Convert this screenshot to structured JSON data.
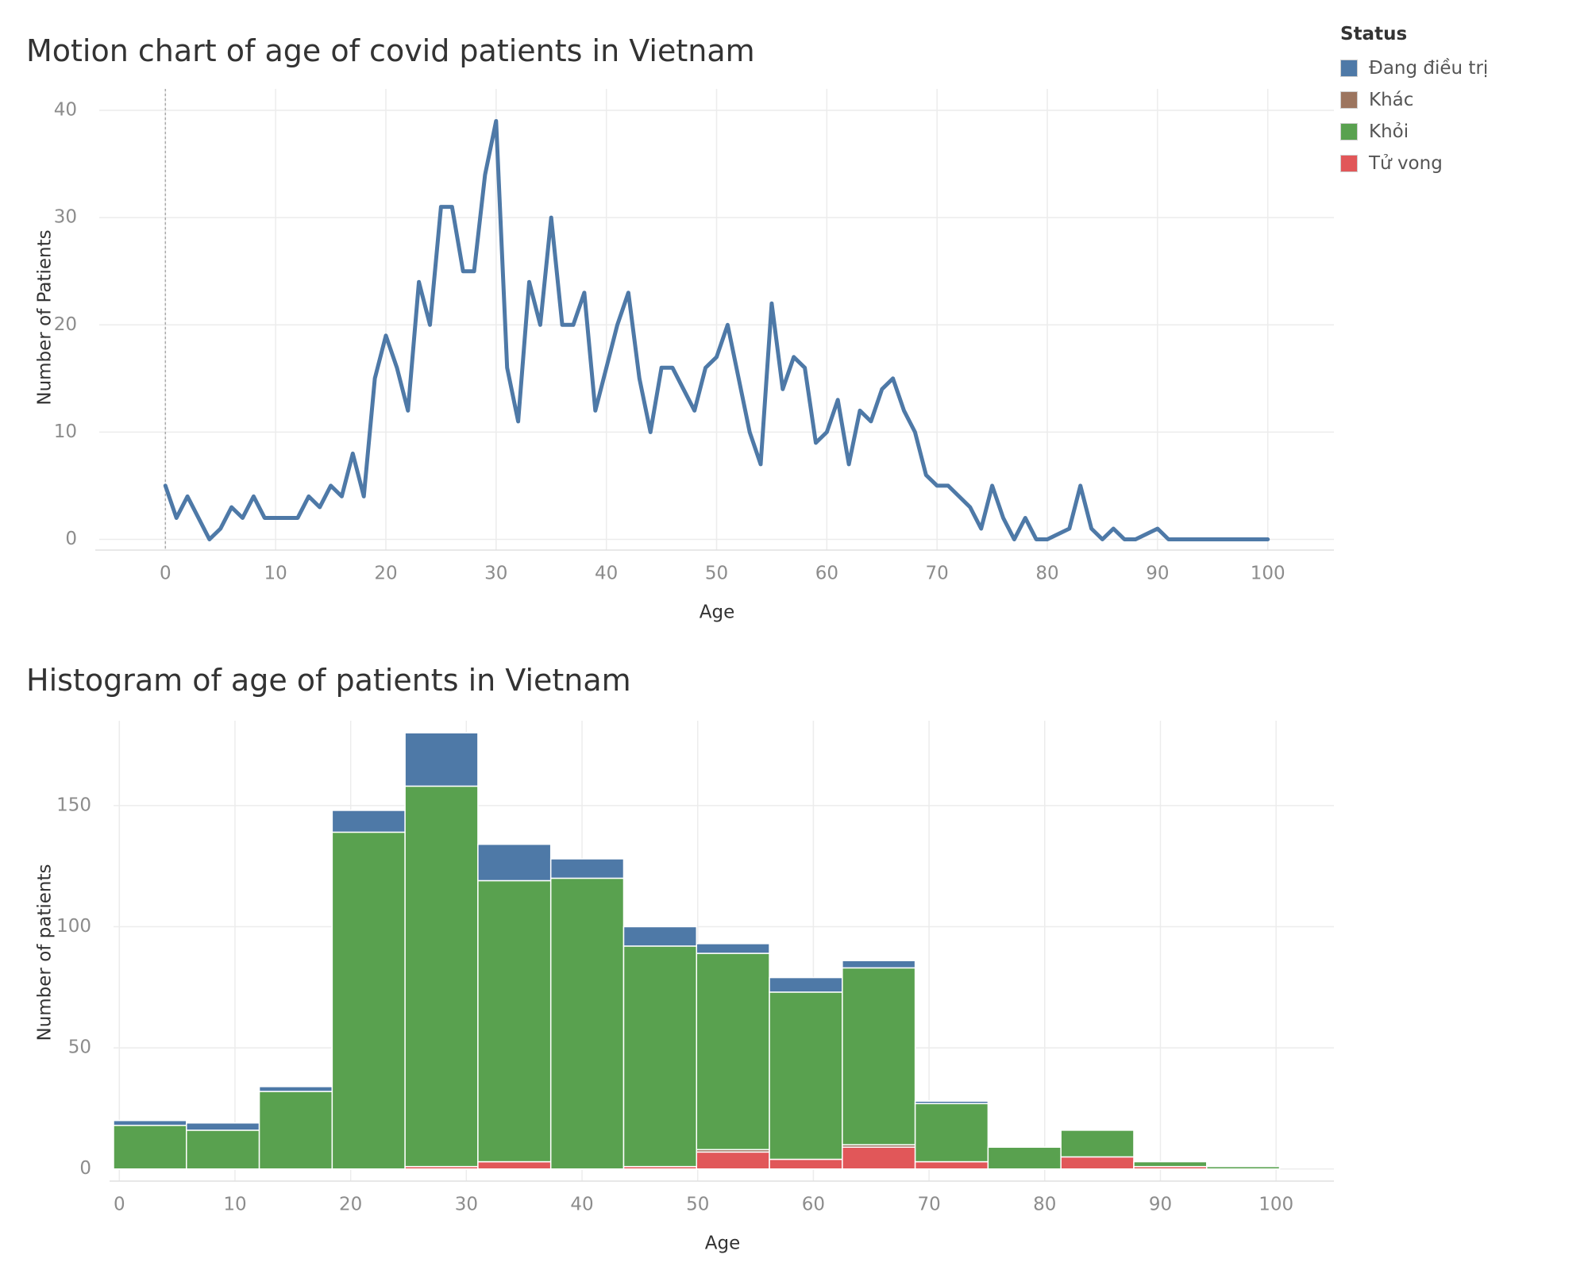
{
  "colors": {
    "line": "#4e79a7",
    "grid": "#ececec",
    "status": [
      "#4e79a7",
      "#9c755f",
      "#59a14f",
      "#e15759"
    ]
  },
  "legend": {
    "title": "Status",
    "items": [
      "Đang điều trị",
      "Khác",
      "Khỏi",
      "Tử vong"
    ]
  },
  "chart_data": [
    {
      "type": "line",
      "title": "Motion chart of age of covid patients in Vietnam",
      "xlabel": "Age",
      "ylabel": "Number of Patients",
      "xlim": [
        -6,
        106
      ],
      "ylim": [
        -1,
        42
      ],
      "xticks": [
        0,
        10,
        20,
        30,
        40,
        50,
        60,
        70,
        80,
        90,
        100
      ],
      "yticks": [
        0,
        10,
        20,
        30,
        40
      ],
      "grid": true,
      "reference_line_x": 0,
      "series": [
        {
          "x": [
            0,
            1,
            2,
            3,
            4,
            5,
            6,
            7,
            8,
            9,
            10,
            11,
            12,
            13,
            14,
            15,
            16,
            17,
            18,
            19,
            20,
            21,
            22,
            23,
            24,
            25,
            26,
            27,
            28,
            29,
            30,
            31,
            32,
            33,
            34,
            35,
            36,
            37,
            38,
            39,
            40,
            41,
            42,
            43,
            44,
            45,
            46,
            47,
            48,
            49,
            50,
            51,
            52,
            53,
            54,
            55,
            56,
            57,
            58,
            59,
            60,
            61,
            62,
            63,
            64,
            65,
            66,
            67,
            68,
            69,
            70,
            71,
            72,
            73,
            74,
            75,
            76,
            77,
            78,
            79,
            80,
            81,
            82,
            83,
            84,
            85,
            86,
            87,
            88,
            89,
            90,
            91,
            92,
            93,
            94,
            95,
            96,
            97,
            98,
            99,
            100
          ],
          "values": [
            5,
            2,
            4,
            2,
            0,
            1,
            3,
            2,
            4,
            2,
            2,
            2,
            2,
            4,
            3,
            5,
            4,
            8,
            4,
            15,
            19,
            16,
            12,
            24,
            20,
            31,
            31,
            25,
            25,
            34,
            39,
            16,
            11,
            24,
            20,
            30,
            20,
            20,
            23,
            12,
            16,
            20,
            23,
            15,
            10,
            16,
            16,
            14,
            12,
            16,
            17,
            20,
            15,
            10,
            7,
            22,
            14,
            17,
            16,
            9,
            10,
            13,
            7,
            12,
            11,
            14,
            15,
            12,
            10,
            6,
            5,
            5,
            4,
            3,
            1,
            5,
            2,
            0,
            2,
            0,
            0,
            0.5,
            1,
            5,
            1,
            0,
            1,
            0,
            0,
            0.5,
            1,
            0,
            0,
            0,
            0,
            0,
            0,
            0,
            0,
            0,
            0
          ]
        }
      ]
    },
    {
      "type": "bar",
      "title": "Histogram of age of patients in Vietnam",
      "xlabel": "Age",
      "ylabel": "Number of patients",
      "xlim": [
        -0.5,
        105
      ],
      "ylim": [
        -5,
        185
      ],
      "xticks": [
        0,
        10,
        20,
        30,
        40,
        50,
        60,
        70,
        80,
        90,
        100
      ],
      "yticks": [
        0,
        50,
        100,
        150
      ],
      "grid": true,
      "stacked": true,
      "bin_edges": [
        -0.5,
        5.8,
        12.1,
        18.4,
        24.7,
        31,
        37.3,
        43.6,
        49.9,
        56.2,
        62.5,
        68.8,
        75.1,
        81.4,
        87.7,
        94,
        100.3
      ],
      "series": [
        {
          "name": "Tử vong",
          "values": [
            0,
            0,
            0,
            0,
            1,
            3,
            0,
            1,
            7,
            4,
            9,
            3,
            0,
            5,
            1,
            0
          ]
        },
        {
          "name": "Khác",
          "values": [
            0,
            0,
            0,
            0,
            0,
            0,
            0,
            0,
            1,
            0,
            1,
            0,
            0,
            0,
            0,
            0
          ]
        },
        {
          "name": "Khỏi",
          "values": [
            18,
            16,
            32,
            139,
            157,
            116,
            120,
            91,
            81,
            69,
            73,
            24,
            9,
            11,
            2,
            1
          ]
        },
        {
          "name": "Đang điều trị",
          "values": [
            2,
            3,
            2,
            9,
            22,
            15,
            8,
            8,
            4,
            6,
            3,
            1,
            0,
            0,
            0,
            0
          ]
        }
      ]
    }
  ]
}
